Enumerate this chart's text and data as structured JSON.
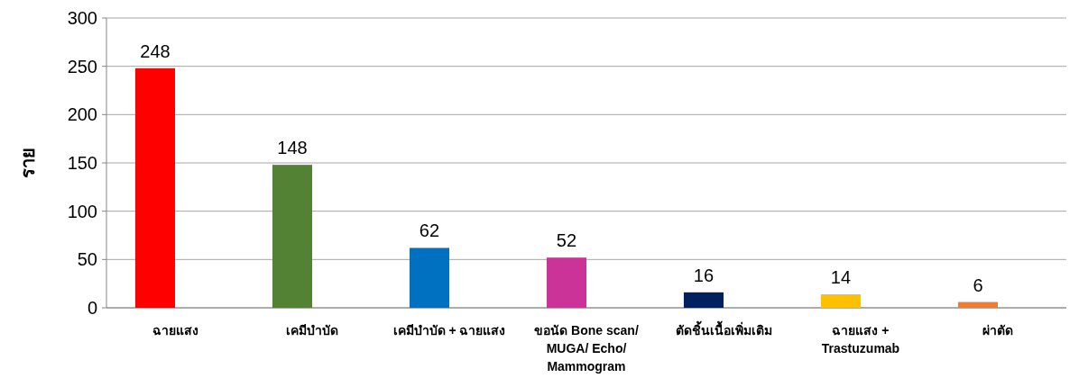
{
  "chart_data": {
    "type": "bar",
    "ylabel": "ราย",
    "categories": [
      "ฉายแสง",
      "เคมีบำบัด",
      "เคมีบำบัด + ฉายแสง",
      "ขอนัด Bone scan/ MUGA/ Echo/ Mammogram",
      "ตัดชิ้นเนื้อเพิ่มเติม",
      "ฉายแสง + Trastuzumab",
      "ผ่าตัด"
    ],
    "values": [
      248,
      148,
      62,
      52,
      16,
      14,
      6
    ],
    "colors": [
      "#ff0000",
      "#548235",
      "#0070c0",
      "#cc3399",
      "#002060",
      "#ffc000",
      "#ed7d31"
    ],
    "ylim": [
      0,
      300
    ],
    "yticks": [
      0,
      50,
      100,
      150,
      200,
      250,
      300
    ],
    "grid": "y",
    "data_labels": true
  }
}
